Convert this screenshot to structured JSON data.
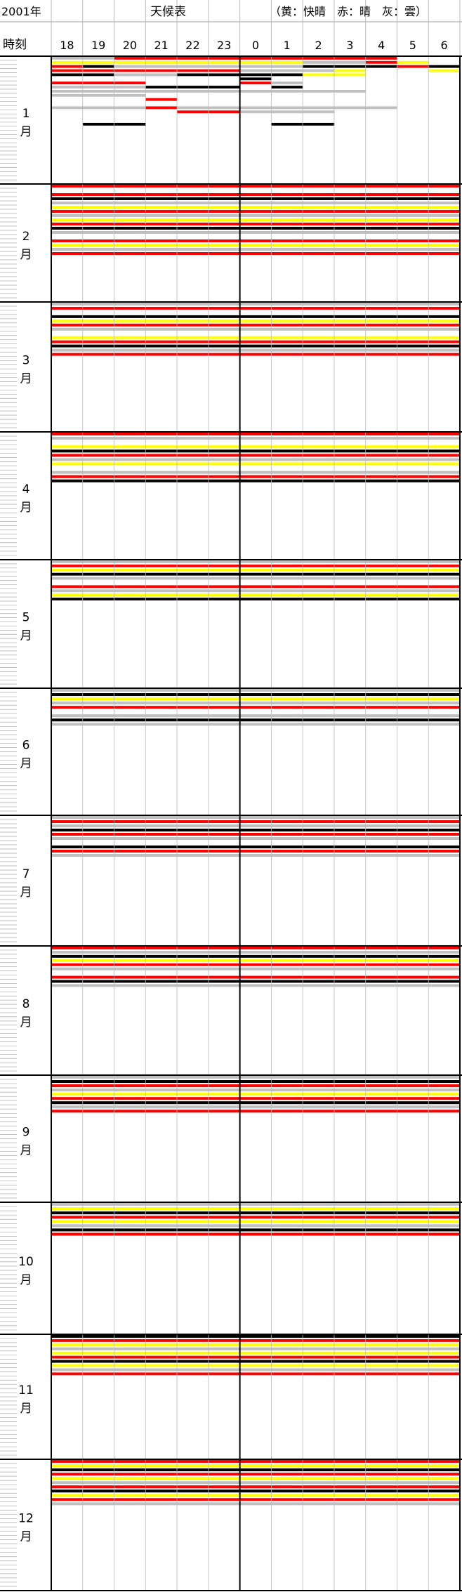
{
  "header": {
    "year": "2001年",
    "title": "天候表",
    "legend": "（黄：快晴　赤：晴　灰：雲）",
    "time_label": "時刻"
  },
  "chart_data": {
    "type": "heatmap",
    "title": "天候表",
    "x_labels": [
      "18",
      "19",
      "20",
      "21",
      "22",
      "23",
      "0",
      "1",
      "2",
      "3",
      "4",
      "5",
      "6"
    ],
    "months": [
      "1月",
      "2月",
      "3月",
      "4月",
      "5月",
      "6月",
      "7月",
      "8月",
      "9月",
      "10月",
      "11月",
      "12月"
    ],
    "legend": [
      {
        "label": "快晴",
        "color": "#ffff00"
      },
      {
        "label": "晴",
        "color": "#ff0000"
      },
      {
        "label": "雲",
        "color": "#c0c0c0"
      }
    ],
    "extra_colors": {
      "black": "#000000",
      "white": "#ffffff"
    },
    "codes": "0 = none, 1 = 快晴 (yellow), 2 = 晴 (red), 3 = 雲 (gray), 4 = black",
    "rows": [
      [
        "0",
        "3322222222200",
        "1111111133210",
        "2433333344424",
        "2222223331001",
        "4433444411000",
        "0000004000000",
        "2220002300000",
        "3334440400000",
        "3333333333000",
        "3330000000000",
        "0002000000000",
        "0000000000000",
        "3332333333300",
        "0000223330000",
        "0000000000000",
        "0000000000000",
        "0440000440000",
        "0000000000000",
        "0000000000000",
        "0000000000000",
        "0000000000000",
        "0000000000000",
        "0000000000000",
        "0000000000000",
        "0000000000000",
        "0000000000000",
        "0000000000000",
        "0000000000000",
        "0000000000000",
        "0000000000000"
      ],
      [
        "1",
        "2222222222222",
        "0000000000000",
        "2222222222222",
        "4444444444444",
        "3333333333333",
        "1111111111111",
        "2222222222222",
        "3333333333333",
        "1111111111111",
        "2222222222222",
        "4444444444444",
        "3333333333333",
        "0000000000000",
        "2222222222222",
        "1111111111111",
        "3333333333333",
        "2222222222222",
        "0000000000000",
        "0000000000000",
        "0000000000000",
        "0000000000000",
        "0000000000000",
        "0000000000000",
        "0000000000000",
        "0000000000000",
        "0000000000000",
        "0000000000000",
        "0000000000000",
        "0000000000000",
        "0000000000000"
      ],
      [
        "2",
        "3333333333333",
        "2222222222222",
        "0000000000000",
        "4444444444444",
        "1111111111111",
        "2222222222222",
        "3333333333333",
        "0000000000000",
        "1111111111111",
        "2222222222222",
        "4444444444444",
        "3333333333333",
        "2222222222222",
        "0000000000000",
        "0000000000000",
        "0000000000000",
        "0000000000000",
        "0000000000000",
        "0000000000000",
        "0000000000000",
        "0000000000000",
        "0000000000000",
        "0000000000000",
        "0000000000000",
        "0000000000000",
        "0000000000000",
        "0000000000000",
        "0000000000000",
        "0000000000000",
        "0000000000000"
      ],
      [
        "3",
        "2222222222222",
        "3333333333333",
        "0000000000000",
        "1111111111111",
        "4444444444444",
        "2222222222222",
        "3333333333333",
        "1111111111111",
        "0000000000000",
        "3333333333333",
        "2222222222222",
        "4444444444444",
        "0000000000000",
        "0000000000000",
        "0000000000000",
        "0000000000000",
        "0000000000000",
        "0000000000000",
        "0000000000000",
        "0000000000000",
        "0000000000000",
        "0000000000000",
        "0000000000000",
        "0000000000000",
        "0000000000000",
        "0000000000000",
        "0000000000000",
        "0000000000000",
        "0000000000000",
        "0000000000000"
      ],
      [
        "4",
        "3333333333333",
        "2222222222222",
        "1111111111111",
        "4444444444444",
        "3333333333333",
        "0000000000000",
        "2222222222222",
        "3333333333333",
        "1111111111111",
        "4444444444444",
        "0000000000000",
        "0000000000000",
        "0000000000000",
        "0000000000000",
        "0000000000000",
        "0000000000000",
        "0000000000000",
        "0000000000000",
        "0000000000000",
        "0000000000000",
        "0000000000000",
        "0000000000000",
        "0000000000000",
        "0000000000000",
        "0000000000000",
        "0000000000000",
        "0000000000000",
        "0000000000000",
        "0000000000000",
        "0000000000000"
      ],
      [
        "5",
        "3333333333333",
        "4444444444444",
        "1111111111111",
        "3333333333333",
        "2222222222222",
        "0000000000000",
        "3333333333333",
        "4444444444444",
        "3333333333333",
        "0000000000000",
        "0000000000000",
        "0000000000000",
        "0000000000000",
        "0000000000000",
        "0000000000000",
        "0000000000000",
        "0000000000000",
        "0000000000000",
        "0000000000000",
        "0000000000000",
        "0000000000000",
        "0000000000000",
        "0000000000000",
        "0000000000000",
        "0000000000000",
        "0000000000000",
        "0000000000000",
        "0000000000000",
        "0000000000000",
        "0000000000000"
      ],
      [
        "6",
        "3333333333333",
        "2222222222222",
        "3333333333333",
        "4444444444444",
        "2222222222222",
        "3333333333333",
        "0000000000000",
        "4444444444444",
        "2222222222222",
        "3333333333333",
        "0000000000000",
        "0000000000000",
        "0000000000000",
        "0000000000000",
        "0000000000000",
        "0000000000000",
        "0000000000000",
        "0000000000000",
        "0000000000000",
        "0000000000000",
        "0000000000000",
        "0000000000000",
        "0000000000000",
        "0000000000000",
        "0000000000000",
        "0000000000000",
        "0000000000000",
        "0000000000000",
        "0000000000000",
        "0000000000000"
      ],
      [
        "7",
        "2222222222222",
        "3333333333333",
        "4444444444444",
        "1111111111111",
        "2222222222222",
        "3333333333333",
        "0000000000000",
        "2222222222222",
        "4444444444444",
        "3333333333333",
        "0000000000000",
        "0000000000000",
        "0000000000000",
        "0000000000000",
        "0000000000000",
        "0000000000000",
        "0000000000000",
        "0000000000000",
        "0000000000000",
        "0000000000000",
        "0000000000000",
        "0000000000000",
        "0000000000000",
        "0000000000000",
        "0000000000000",
        "0000000000000",
        "0000000000000",
        "0000000000000",
        "0000000000000",
        "0000000000000"
      ],
      [
        "8",
        "3333333333333",
        "4444444444444",
        "2222222222222",
        "3333333333333",
        "1111111111111",
        "2222222222222",
        "4444444444444",
        "3333333333333",
        "2222222222222",
        "0000000000000",
        "0000000000000",
        "0000000000000",
        "0000000000000",
        "0000000000000",
        "0000000000000",
        "0000000000000",
        "0000000000000",
        "0000000000000",
        "0000000000000",
        "0000000000000",
        "0000000000000",
        "0000000000000",
        "0000000000000",
        "0000000000000",
        "0000000000000",
        "0000000000000",
        "0000000000000",
        "0000000000000",
        "0000000000000",
        "0000000000000"
      ],
      [
        "9",
        "3333333333333",
        "1111111111111",
        "4444444444444",
        "2222222222222",
        "1111111111111",
        "3333333333333",
        "4444444444444",
        "2222222222222",
        "0000000000000",
        "0000000000000",
        "0000000000000",
        "0000000000000",
        "0000000000000",
        "0000000000000",
        "0000000000000",
        "0000000000000",
        "0000000000000",
        "0000000000000",
        "0000000000000",
        "0000000000000",
        "0000000000000",
        "0000000000000",
        "0000000000000",
        "0000000000000",
        "0000000000000",
        "0000000000000",
        "0000000000000",
        "0000000000000",
        "0000000000000",
        "0000000000000"
      ],
      [
        "10",
        "4444444444444",
        "2222222222222",
        "1111111111111",
        "3333333333333",
        "1111111111111",
        "2222222222222",
        "4444444444444",
        "1111111111111",
        "3333333333333",
        "2222222222222",
        "0000000000000",
        "0000000000000",
        "0000000000000",
        "0000000000000",
        "0000000000000",
        "0000000000000",
        "0000000000000",
        "0000000000000",
        "0000000000000",
        "0000000000000",
        "0000000000000",
        "0000000000000",
        "0000000000000",
        "0000000000000",
        "0000000000000",
        "0000000000000",
        "0000000000000",
        "0000000000000",
        "0000000000000",
        "0000000000000"
      ],
      [
        "11",
        "2222222222222",
        "1111111111111",
        "4444444444444",
        "2222222222222",
        "1111111111111",
        "3333333333333",
        "2222222222222",
        "4444444444444",
        "1111111111111",
        "2222222222222",
        "3333333333333",
        "0000000000000",
        "0000000000000",
        "0000000000000",
        "0000000000000",
        "0000000000000",
        "0000000000000",
        "0000000000000",
        "0000000000000",
        "0000000000000",
        "0000000000000",
        "0000000000000",
        "0000000000000",
        "0000000000000",
        "0000000000000",
        "0000000000000",
        "0000000000000",
        "0000000000000",
        "0000000000000",
        "0000000000000"
      ]
    ]
  }
}
